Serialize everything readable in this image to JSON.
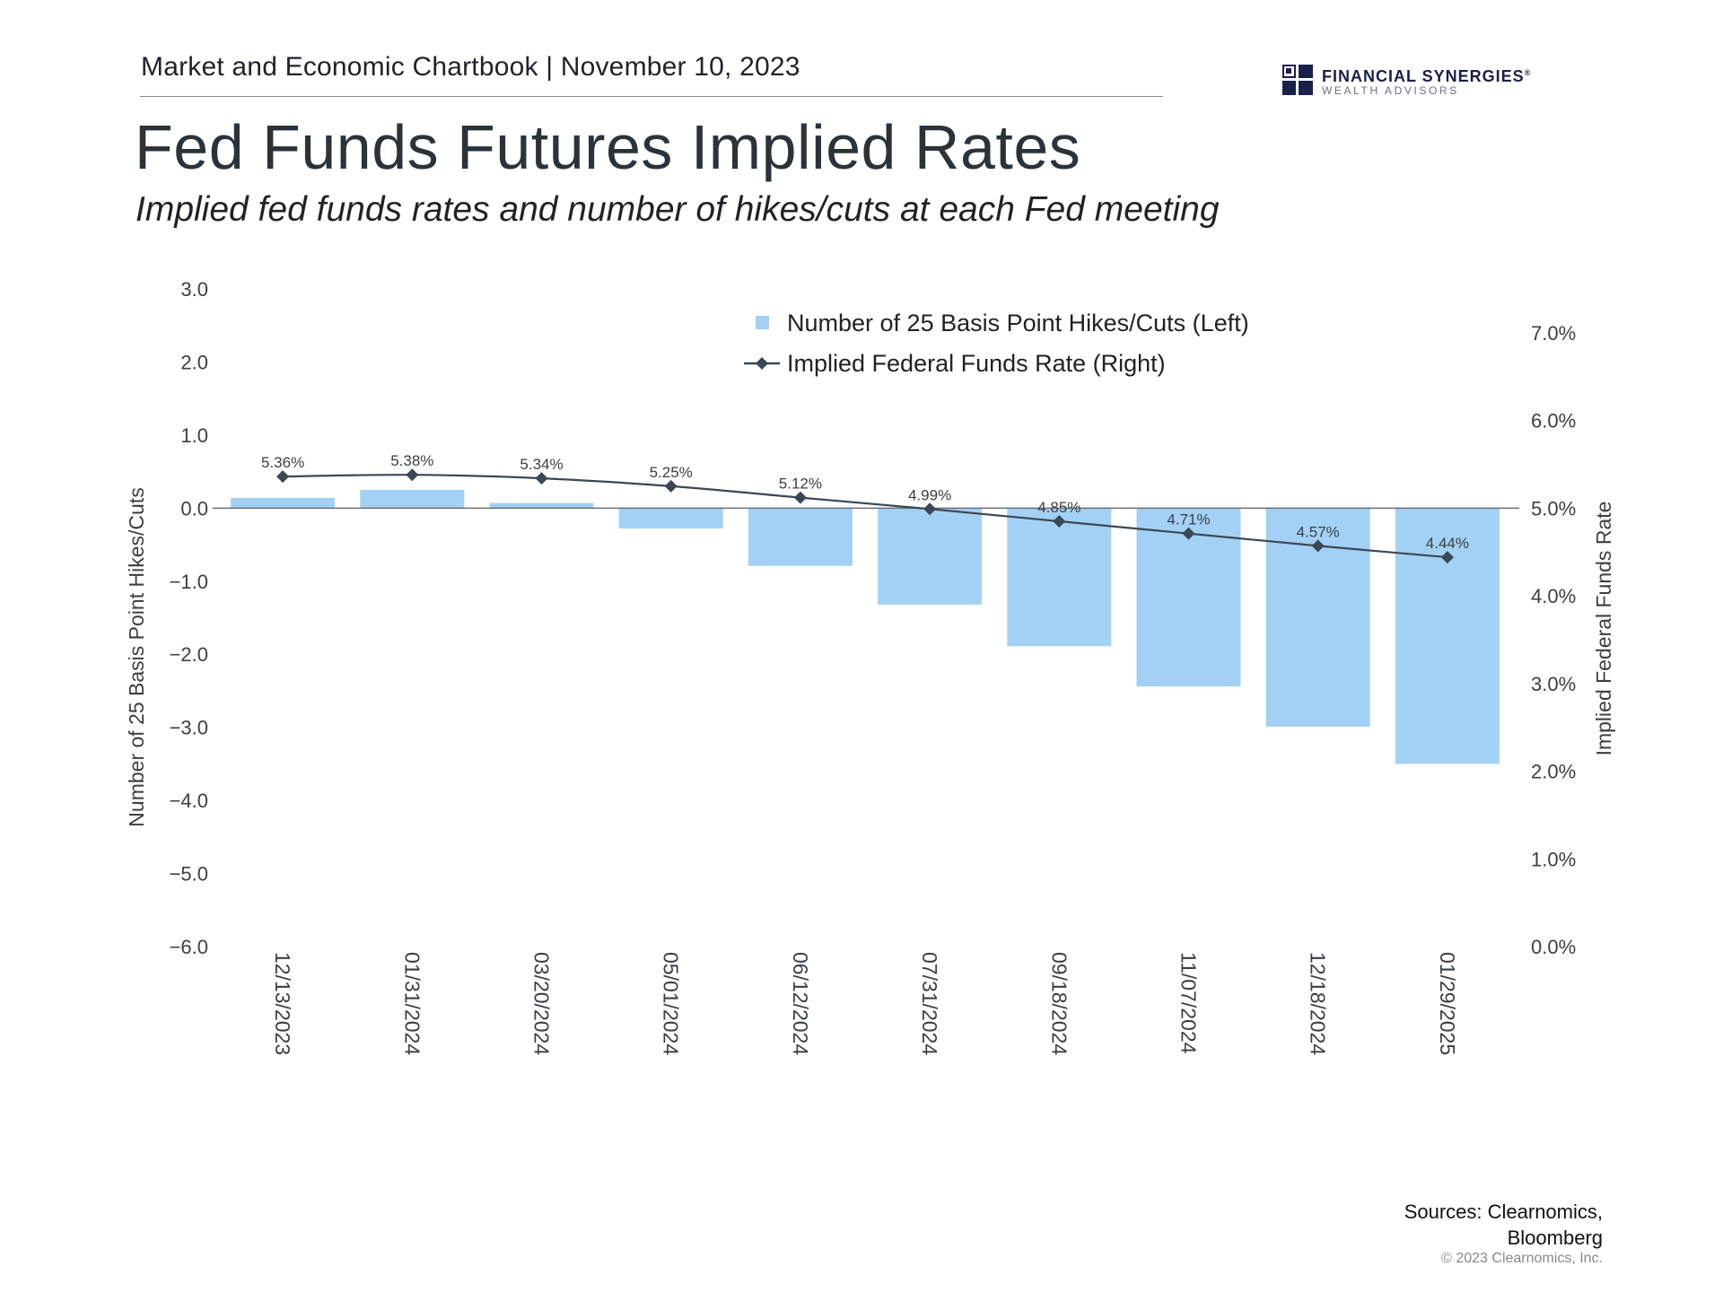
{
  "header": {
    "chartbook": "Market and Economic Chartbook | November 10, 2023",
    "logo_name": "FINANCIAL SYNERGIES",
    "logo_reg": "®",
    "logo_sub": "WEALTH ADVISORS"
  },
  "title": "Fed Funds Futures Implied Rates",
  "subtitle": "Implied fed funds rates and number of hikes/cuts at each Fed meeting",
  "footer": {
    "sources_line1": "Sources: Clearnomics,",
    "sources_line2": "Bloomberg",
    "copyright": "© 2023 Clearnomics, Inc."
  },
  "chart_data": {
    "type": "bar+line",
    "categories": [
      "12/13/2023",
      "01/31/2024",
      "03/20/2024",
      "05/01/2024",
      "06/12/2024",
      "07/31/2024",
      "09/18/2024",
      "11/07/2024",
      "12/18/2024",
      "01/29/2025"
    ],
    "series": [
      {
        "name": "Number of 25 Basis Point Hikes/Cuts (Left)",
        "type": "bar",
        "axis": "left",
        "color": "#a3d1f5",
        "values": [
          0.14,
          0.25,
          0.07,
          -0.28,
          -0.79,
          -1.32,
          -1.89,
          -2.44,
          -2.99,
          -3.5
        ]
      },
      {
        "name": "Implied Federal Funds Rate (Right)",
        "type": "line",
        "axis": "right",
        "color": "#3b4754",
        "values": [
          5.36,
          5.38,
          5.34,
          5.25,
          5.12,
          4.99,
          4.85,
          4.71,
          4.57,
          4.44
        ],
        "labels": [
          "5.36%",
          "5.38%",
          "5.34%",
          "5.25%",
          "5.12%",
          "4.99%",
          "4.85%",
          "4.71%",
          "4.57%",
          "4.44%"
        ]
      }
    ],
    "left_axis": {
      "label": "Number of 25 Basis Point Hikes/Cuts",
      "min": -6,
      "max": 3,
      "ticks": [
        3,
        2,
        1,
        0,
        -1,
        -2,
        -3,
        -4,
        -5,
        -6
      ],
      "tick_labels": [
        "3.0",
        "2.0",
        "1.0",
        "0.0",
        "−1.0",
        "−2.0",
        "−3.0",
        "−4.0",
        "−5.0",
        "−6.0"
      ]
    },
    "right_axis": {
      "label": "Implied Federal Funds Rate",
      "min": 0,
      "max": 7.5,
      "ticks": [
        7,
        6,
        5,
        4,
        3,
        2,
        1,
        0
      ],
      "tick_labels": [
        "7.0%",
        "6.0%",
        "5.0%",
        "4.0%",
        "3.0%",
        "2.0%",
        "1.0%",
        "0.0%"
      ]
    },
    "legend_position": "top-center",
    "grid": false
  }
}
